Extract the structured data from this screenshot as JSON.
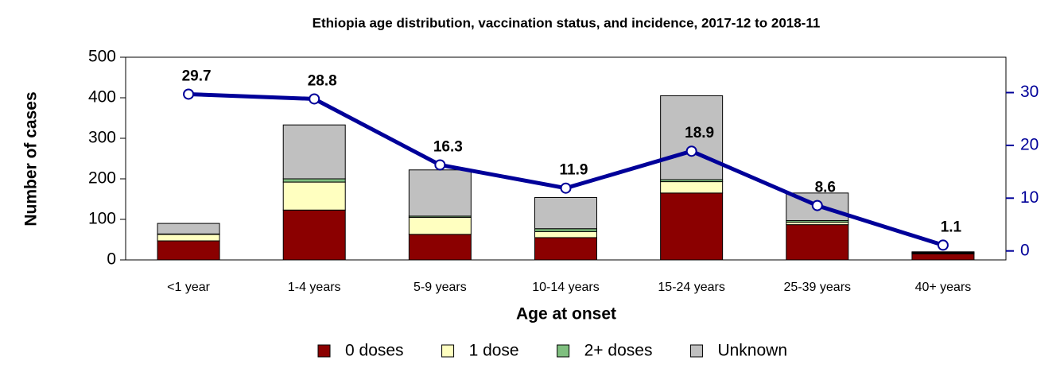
{
  "chart_data": {
    "type": "bar",
    "title": "Ethiopia age distribution, vaccination status, and incidence, 2017-12 to 2018-11",
    "xlabel": "Age at onset",
    "ylabel": "Number of cases",
    "categories": [
      "<1 year",
      "1-4 years",
      "5-9 years",
      "10-14 years",
      "15-24 years",
      "25-39 years",
      "40+ years"
    ],
    "stacked": true,
    "series": [
      {
        "name": "0 doses",
        "color": "#8b0000",
        "values": [
          47,
          123,
          63,
          55,
          165,
          87,
          15
        ]
      },
      {
        "name": "1 dose",
        "color": "#ffffc0",
        "values": [
          16,
          69,
          42,
          15,
          28,
          6,
          2
        ]
      },
      {
        "name": "2+ doses",
        "color": "#7fbf7f",
        "values": [
          1,
          8,
          3,
          7,
          5,
          4,
          1
        ]
      },
      {
        "name": "Unknown",
        "color": "#c0c0c0",
        "values": [
          26,
          133,
          114,
          77,
          207,
          68,
          2
        ]
      },
      {
        "type": "line",
        "axis": "y2",
        "color": "#000099",
        "values": [
          29.7,
          28.8,
          16.3,
          11.9,
          18.9,
          8.6,
          1.1
        ]
      }
    ],
    "ylim": [
      0,
      500
    ],
    "yticks": [
      0,
      100,
      200,
      300,
      400,
      500
    ],
    "y2lim": [
      -1.7,
      36.7
    ],
    "y2ticks": [
      0,
      10,
      20,
      30
    ],
    "legend": "bottom"
  }
}
